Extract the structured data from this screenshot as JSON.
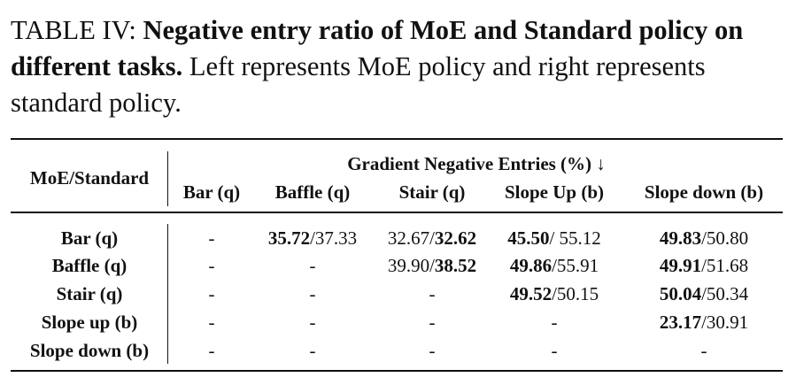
{
  "caption": {
    "label": "TABLE IV:",
    "title": "Negative entry ratio of MoE and Standard policy on different tasks.",
    "description": "Left represents MoE policy and right represents standard policy."
  },
  "table": {
    "corner_header": "MoE/Standard",
    "group_header": "Gradient Negative Entries (%) ↓",
    "columns": [
      "Bar (q)",
      "Baffle (q)",
      "Stair (q)",
      "Slope Up (b)",
      "Slope down (b)"
    ],
    "rows": [
      {
        "label": "Bar (q)",
        "cells": [
          {
            "text": "-"
          },
          {
            "left": "35.72",
            "sep": "/",
            "right": "37.33",
            "bold": "left"
          },
          {
            "left": "32.67",
            "sep": "/",
            "right": "32.62",
            "bold": "right"
          },
          {
            "left": "45.50",
            "sep": "/ ",
            "right": "55.12",
            "bold": "left"
          },
          {
            "left": "49.83",
            "sep": "/",
            "right": "50.80",
            "bold": "left"
          }
        ]
      },
      {
        "label": "Baffle (q)",
        "cells": [
          {
            "text": "-"
          },
          {
            "text": "-"
          },
          {
            "left": "39.90",
            "sep": "/",
            "right": "38.52",
            "bold": "right"
          },
          {
            "left": "49.86",
            "sep": "/",
            "right": "55.91",
            "bold": "left"
          },
          {
            "left": "49.91",
            "sep": "/",
            "right": "51.68",
            "bold": "left"
          }
        ]
      },
      {
        "label": "Stair (q)",
        "cells": [
          {
            "text": "-"
          },
          {
            "text": "-"
          },
          {
            "text": "-"
          },
          {
            "left": "49.52",
            "sep": "/",
            "right": "50.15",
            "bold": "left"
          },
          {
            "left": "50.04",
            "sep": "/",
            "right": "50.34",
            "bold": "left"
          }
        ]
      },
      {
        "label": "Slope up (b)",
        "cells": [
          {
            "text": "-"
          },
          {
            "text": "-"
          },
          {
            "text": "-"
          },
          {
            "text": "-"
          },
          {
            "left": "23.17",
            "sep": "/",
            "right": "30.91",
            "bold": "left"
          }
        ]
      },
      {
        "label": "Slope down (b)",
        "cells": [
          {
            "text": "-"
          },
          {
            "text": "-"
          },
          {
            "text": "-"
          },
          {
            "text": "-"
          },
          {
            "text": "-"
          }
        ]
      }
    ]
  }
}
